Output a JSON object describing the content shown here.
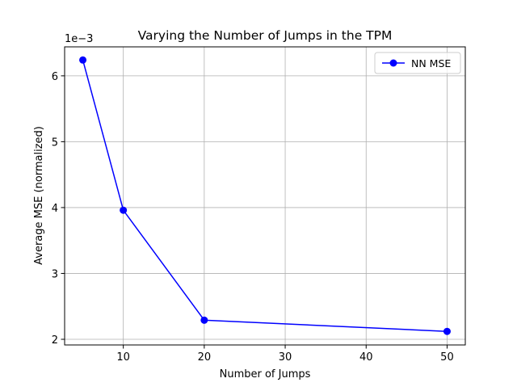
{
  "chart_data": {
    "type": "line",
    "title": "Varying the Number of Jumps in the TPM",
    "xlabel": "Number of Jumps",
    "ylabel": "Average MSE (normalized)",
    "y_scale_label": "1e−3",
    "x": [
      5,
      10,
      20,
      50
    ],
    "series": [
      {
        "name": "NN MSE",
        "values": [
          6.24,
          3.96,
          2.29,
          2.12
        ],
        "color": "#0000ff",
        "marker": "circle"
      }
    ],
    "xlim": [
      2.75,
      52.25
    ],
    "ylim": [
      1.914,
      6.44
    ],
    "xticks": [
      10,
      20,
      30,
      40,
      50
    ],
    "yticks": [
      2,
      3,
      4,
      5,
      6
    ],
    "grid": true,
    "legend_position": "top-right"
  },
  "colors": {
    "series": "#0000ff",
    "grid": "#b0b0b0",
    "axis": "#000000"
  }
}
